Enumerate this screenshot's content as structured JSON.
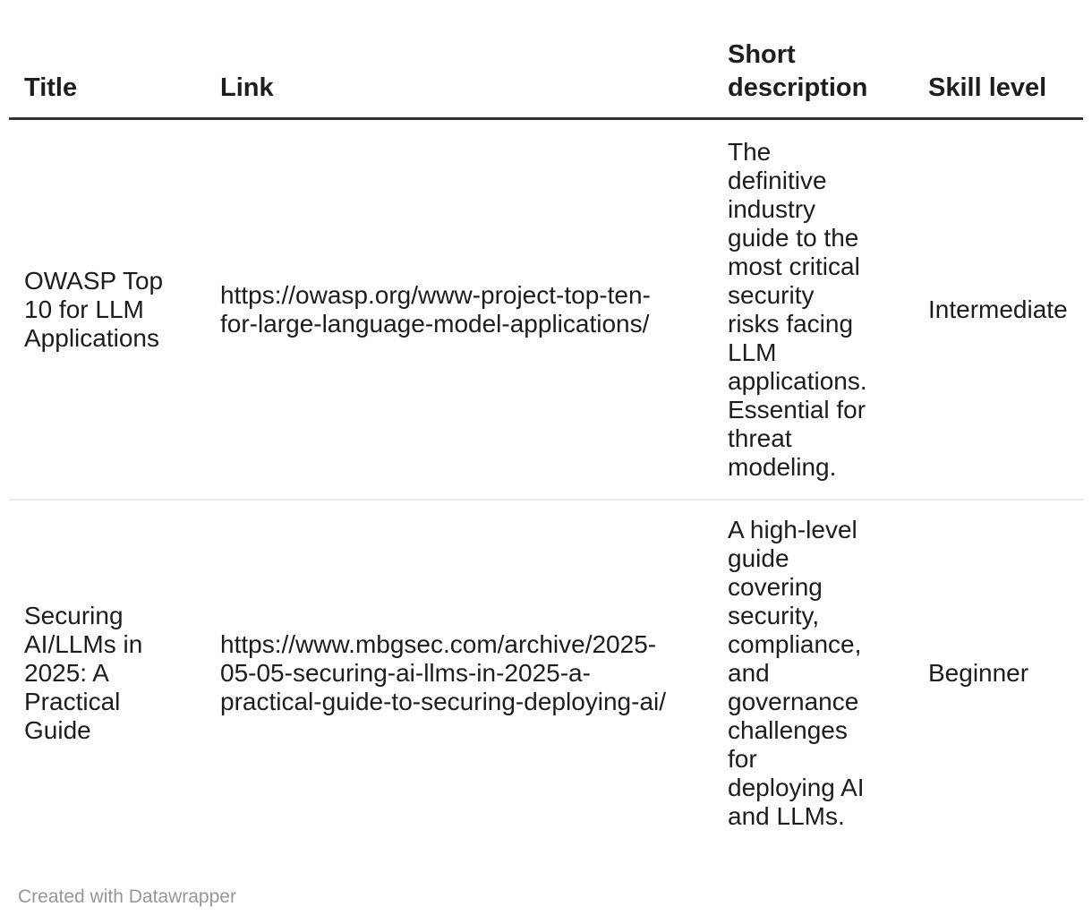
{
  "table": {
    "columns": [
      {
        "label": "Title"
      },
      {
        "label": "Link"
      },
      {
        "label": "Short\ndescription"
      },
      {
        "label": "Skill level"
      }
    ],
    "rows": [
      {
        "title": "OWASP Top\n10 for LLM\nApplications",
        "link": "https://owasp.org/www-project-top-ten-\nfor-large-language-model-applications/",
        "short_description": "The\ndefinitive\nindustry\nguide to the\nmost critical\nsecurity\nrisks facing\nLLM\napplications.\nEssential for\nthreat\nmodeling.",
        "skill_level": "Intermediate"
      },
      {
        "title": "Securing\nAI/LLMs in\n2025: A\nPractical\nGuide",
        "link": "https://www.mbgsec.com/archive/2025-\n05-05-securing-ai-llms-in-2025-a-\npractical-guide-to-securing-deploying-ai/",
        "short_description": "A high-level\nguide\ncovering\nsecurity,\ncompliance,\nand\ngovernance\nchallenges\nfor\ndeploying AI\nand LLMs.",
        "skill_level": "Beginner"
      }
    ]
  },
  "footer": {
    "credit": "Created with Datawrapper"
  },
  "colors": {
    "header_border": "#333333",
    "row_divider": "#ebebeb",
    "text": "#1d1d1d",
    "footer_text": "#979797"
  }
}
